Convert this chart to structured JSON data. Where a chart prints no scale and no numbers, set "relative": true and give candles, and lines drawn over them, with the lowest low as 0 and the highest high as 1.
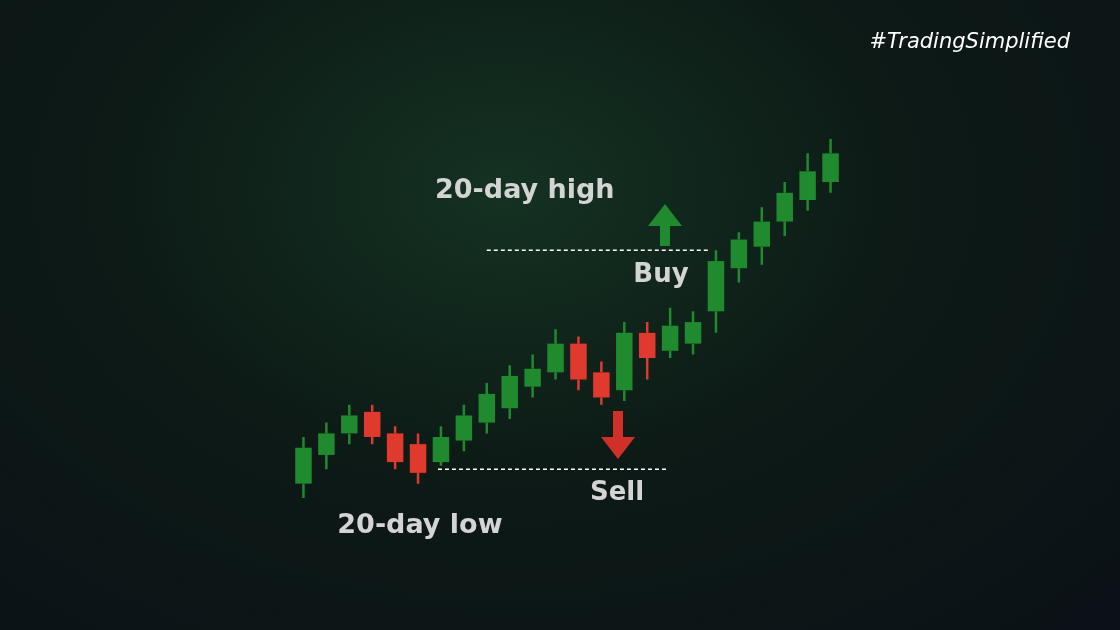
{
  "chart_data": {
    "type": "candlestick",
    "relative": true,
    "categories": [
      null,
      null,
      null,
      null,
      null,
      null,
      null,
      null,
      null,
      null,
      null,
      null,
      null,
      null,
      null,
      null,
      null,
      null,
      null,
      null,
      null,
      null,
      null,
      null
    ],
    "ohlc": [
      [
        0.04,
        0.17,
        0,
        0.14
      ],
      [
        0.12,
        0.21,
        0.08,
        0.18
      ],
      [
        0.18,
        0.26,
        0.15,
        0.23
      ],
      [
        0.24,
        0.26,
        0.15,
        0.17
      ],
      [
        0.18,
        0.2,
        0.08,
        0.1
      ],
      [
        0.15,
        0.18,
        0.04,
        0.07
      ],
      [
        0.1,
        0.2,
        0.09,
        0.17
      ],
      [
        0.16,
        0.26,
        0.13,
        0.23
      ],
      [
        0.21,
        0.32,
        0.18,
        0.29
      ],
      [
        0.25,
        0.37,
        0.22,
        0.34
      ],
      [
        0.31,
        0.4,
        0.28,
        0.36
      ],
      [
        0.35,
        0.47,
        0.33,
        0.43
      ],
      [
        0.43,
        0.45,
        0.3,
        0.33
      ],
      [
        0.35,
        0.38,
        0.26,
        0.28
      ],
      [
        0.3,
        0.49,
        0.27,
        0.46
      ],
      [
        0.46,
        0.49,
        0.33,
        0.39
      ],
      [
        0.41,
        0.53,
        0.39,
        0.48
      ],
      [
        0.43,
        0.52,
        0.4,
        0.49
      ],
      [
        0.52,
        0.69,
        0.46,
        0.66
      ],
      [
        0.64,
        0.74,
        0.6,
        0.72
      ],
      [
        0.7,
        0.81,
        0.65,
        0.77
      ],
      [
        0.77,
        0.88,
        0.73,
        0.85
      ],
      [
        0.83,
        0.96,
        0.8,
        0.91
      ],
      [
        0.88,
        1,
        0.85,
        0.96
      ]
    ],
    "colors": [
      "#1f8a2e",
      "#1f8a2e",
      "#1f8a2e",
      "#e03a2e",
      "#e03a2e",
      "#e03a2e",
      "#1f8a2e",
      "#1f8a2e",
      "#1f8a2e",
      "#1f8a2e",
      "#1f8a2e",
      "#1f8a2e",
      "#e03a2e",
      "#e03a2e",
      "#1f8a2e",
      "#e03a2e",
      "#1f8a2e",
      "#1f8a2e",
      "#1f8a2e",
      "#1f8a2e",
      "#1f8a2e",
      "#1f8a2e",
      "#1f8a2e",
      "#1f8a2e"
    ],
    "ref_lines": [
      {
        "axis": "y",
        "value": 0.69,
        "label": "20-day high",
        "color": "#ffffff",
        "line_style": "dashed"
      },
      {
        "axis": "y",
        "value": 0.08,
        "label": "20-day low",
        "color": "#ffffff",
        "line_style": "dashed"
      }
    ],
    "annotations": [
      "Buy",
      "Sell",
      "#TradingSimplified"
    ],
    "legend": false
  }
}
